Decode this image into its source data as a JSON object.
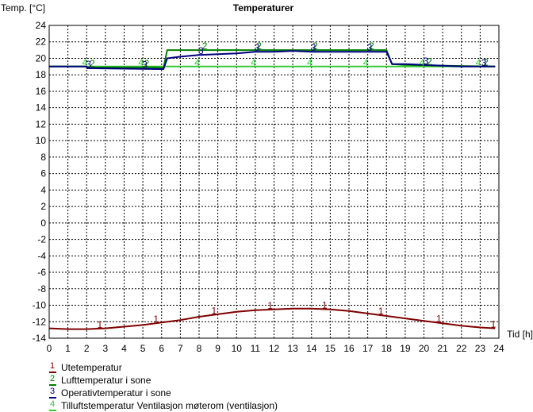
{
  "chart_data": {
    "type": "line",
    "title": "Temperaturer",
    "ylabel": "Temp. [°C]",
    "xlabel": "Tid [h]",
    "xlim": [
      0,
      24
    ],
    "ylim": [
      -14,
      24
    ],
    "grid": true,
    "legend_position": "bottom-left",
    "x_ticks": [
      "0",
      "1",
      "2",
      "3",
      "4",
      "5",
      "6",
      "7",
      "8",
      "9",
      "10",
      "11",
      "12",
      "13",
      "14",
      "15",
      "16",
      "17",
      "18",
      "19",
      "20",
      "21",
      "22",
      "23",
      "24"
    ],
    "y_ticks": [
      "24",
      "22",
      "20",
      "18",
      "16",
      "14",
      "12",
      "10",
      "8",
      "6",
      "4",
      "2",
      "0",
      "-2",
      "-4",
      "-6",
      "-8",
      "-10",
      "-12",
      "-14"
    ],
    "series": [
      {
        "name": "Utetemperatur",
        "marker": "1",
        "color": "#800000",
        "x": [
          0,
          1,
          2,
          3,
          4,
          5,
          6,
          7,
          8,
          9,
          10,
          11,
          12,
          13,
          14,
          15,
          16,
          17,
          18,
          19,
          20,
          21,
          22,
          23,
          23.8
        ],
        "y": [
          -12.8,
          -12.9,
          -12.9,
          -12.8,
          -12.6,
          -12.4,
          -12.1,
          -11.8,
          -11.4,
          -11.1,
          -10.8,
          -10.6,
          -10.5,
          -10.4,
          -10.4,
          -10.5,
          -10.7,
          -11.0,
          -11.3,
          -11.6,
          -11.9,
          -12.2,
          -12.5,
          -12.7,
          -12.8
        ],
        "marker_x": [
          2.7,
          5.7,
          8.8,
          11.8,
          14.7,
          17.7,
          20.8,
          23.7
        ]
      },
      {
        "name": "Lufttemperatur i sone",
        "marker": "2",
        "color": "#008000",
        "x": [
          0,
          2,
          2.01,
          5.9,
          6.1,
          6.3,
          18.0,
          18.3,
          19.0,
          21.0,
          23.8
        ],
        "y": [
          19.0,
          19.0,
          18.9,
          18.9,
          18.8,
          21.0,
          21.0,
          19.3,
          19.2,
          19.1,
          19.0
        ],
        "marker_x": [
          2.3,
          5.2,
          8.3,
          11.2,
          14.2,
          17.2,
          20.3,
          23.3
        ]
      },
      {
        "name": "Operativtemperatur i sone",
        "marker": "3",
        "color": "#000080",
        "x": [
          0,
          2,
          2.01,
          5.9,
          6.1,
          6.3,
          7,
          8,
          9,
          10,
          11,
          12,
          13,
          14,
          15,
          16,
          17,
          18.0,
          18.3,
          19.0,
          20,
          21,
          22,
          23.8
        ],
        "y": [
          19.0,
          19.0,
          18.8,
          18.7,
          18.7,
          20.0,
          20.2,
          20.4,
          20.5,
          20.6,
          20.8,
          20.8,
          20.9,
          20.8,
          20.8,
          20.8,
          20.8,
          20.8,
          19.3,
          19.3,
          19.2,
          19.1,
          19.0,
          19.0
        ],
        "marker_x": [
          2.1,
          5.1,
          8.1,
          11.1,
          14.1,
          17.1,
          20.1,
          23.2
        ]
      },
      {
        "name": "Tilluftstemperatur Ventilasjon møterom (ventilasjon)",
        "marker": "4",
        "color": "#33cc33",
        "x": [
          0,
          23.8
        ],
        "y": [
          19.0,
          19.0
        ],
        "marker_x": [
          1.9,
          4.9,
          7.9,
          10.9,
          13.9,
          16.9,
          19.9,
          22.9
        ]
      }
    ]
  }
}
